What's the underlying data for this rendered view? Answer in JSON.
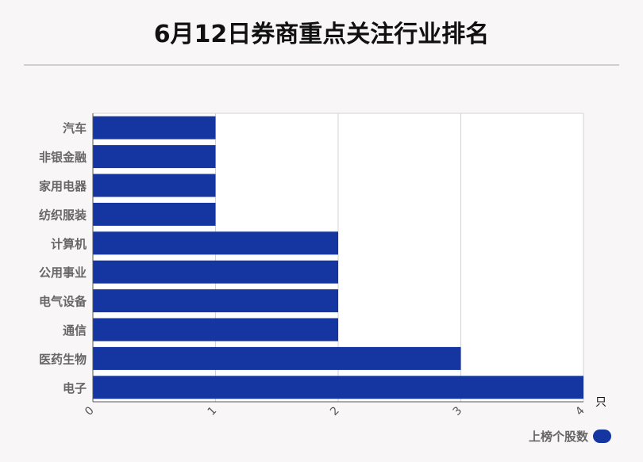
{
  "title": "6月12日券商重点关注行业排名",
  "legend": {
    "label": "上榜个股数",
    "color": "#1535a0"
  },
  "chart_data": {
    "type": "bar",
    "orientation": "horizontal",
    "categories": [
      "汽车",
      "非银金融",
      "家用电器",
      "纺织服装",
      "计算机",
      "公用事业",
      "电气设备",
      "通信",
      "医药生物",
      "电子"
    ],
    "series": [
      {
        "name": "上榜个股数",
        "values": [
          1,
          1,
          1,
          1,
          2,
          2,
          2,
          2,
          3,
          4
        ],
        "color": "#1535a0"
      }
    ],
    "xlim": [
      0,
      4
    ],
    "xticks": [
      "0",
      "1",
      "2",
      "3",
      "4"
    ],
    "xunit": "只",
    "grid": true,
    "legend_position": "bottom-right"
  }
}
